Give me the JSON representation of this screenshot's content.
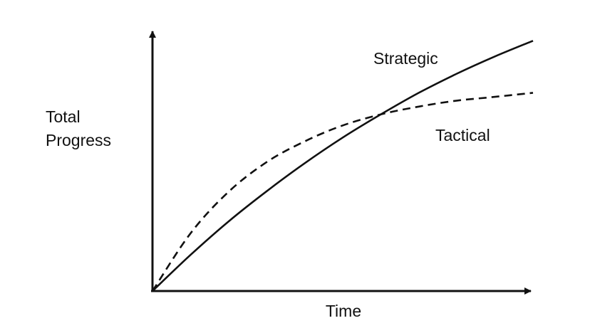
{
  "chart_data": {
    "type": "line",
    "xlabel": "Time",
    "ylabel": [
      "Total",
      "Progress"
    ],
    "grid": false,
    "legend": "none (series labeled directly on curves)",
    "series": [
      {
        "name": "Strategic",
        "style": "solid",
        "x": [
          0,
          10,
          20,
          30,
          40,
          50,
          60,
          70,
          80,
          90,
          100
        ],
        "y": [
          0,
          13.4,
          25.8,
          37.0,
          47.4,
          56.9,
          65.5,
          73.5,
          80.6,
          87.0,
          92.8
        ]
      },
      {
        "name": "Tactical",
        "style": "dashed",
        "x": [
          0,
          10,
          20,
          30,
          40,
          50,
          60,
          70,
          80,
          90,
          100
        ],
        "y": [
          0,
          21.4,
          36.8,
          47.8,
          55.5,
          61.4,
          65.5,
          68.4,
          70.6,
          72.0,
          73.5
        ]
      }
    ],
    "xlim": [
      0,
      100
    ],
    "ylim": [
      0,
      100
    ],
    "colors": {
      "line": "#111111",
      "background": "#ffffff"
    }
  }
}
